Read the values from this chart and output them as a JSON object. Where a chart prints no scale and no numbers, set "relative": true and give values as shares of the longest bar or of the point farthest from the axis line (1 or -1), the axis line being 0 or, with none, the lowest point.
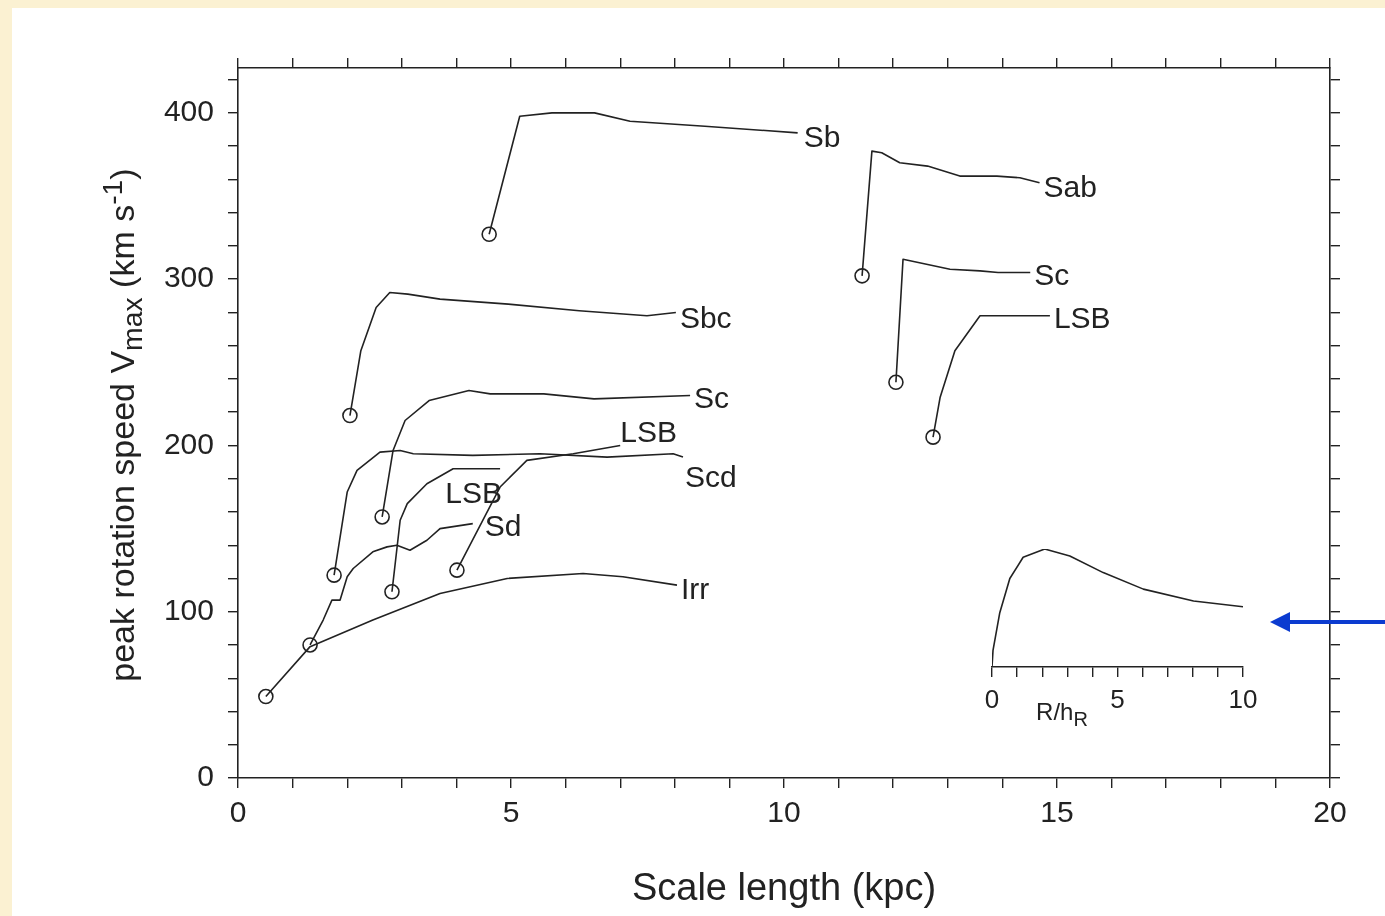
{
  "chart_data": [
    {
      "type": "line",
      "xlabel": "Scale length (kpc)",
      "ylabel": "peak rotation speed V$_{max}$ (km s$^{-1}$)",
      "xlim": [
        0,
        20
      ],
      "ylim": [
        0,
        427
      ],
      "xticks": [
        0,
        {
          "value": 1,
          "label": null
        },
        {
          "value": 2,
          "label": null
        },
        {
          "value": 3,
          "label": null
        },
        {
          "value": 4,
          "label": null
        },
        5,
        {
          "value": 6,
          "label": null
        },
        {
          "value": 7,
          "label": null
        },
        {
          "value": 8,
          "label": null
        },
        {
          "value": 9,
          "label": null
        },
        10,
        {
          "value": 11,
          "label": null
        },
        {
          "value": 12,
          "label": null
        },
        {
          "value": 13,
          "label": null
        },
        {
          "value": 14,
          "label": null
        },
        15,
        {
          "value": 16,
          "label": null
        },
        {
          "value": 17,
          "label": null
        },
        {
          "value": 18,
          "label": null
        },
        {
          "value": 19,
          "label": null
        },
        20
      ],
      "yticks": [
        0,
        {
          "value": 20,
          "label": null
        },
        {
          "value": 40,
          "label": null
        },
        {
          "value": 60,
          "label": null
        },
        {
          "value": 80,
          "label": null
        },
        100,
        {
          "value": 120,
          "label": null
        },
        {
          "value": 140,
          "label": null
        },
        {
          "value": 160,
          "label": null
        },
        {
          "value": 180,
          "label": null
        },
        200,
        {
          "value": 220,
          "label": null
        },
        {
          "value": 240,
          "label": null
        },
        {
          "value": 260,
          "label": null
        },
        {
          "value": 280,
          "label": null
        },
        300,
        {
          "value": 320,
          "label": null
        },
        {
          "value": 340,
          "label": null
        },
        {
          "value": 360,
          "label": null
        },
        {
          "value": 380,
          "label": null
        },
        400,
        {
          "value": 420,
          "label": null
        }
      ],
      "marker": "none",
      "series": [
        {
          "name": "Sb",
          "color": "#222222",
          "x": [
            4.6,
            5.16,
            5.75,
            6.53,
            7.18,
            8.55,
            10.25
          ],
          "values": [
            327,
            398,
            400,
            400,
            395,
            392,
            388
          ]
        },
        {
          "name": "Sab",
          "color": "#222222",
          "x": [
            11.43,
            11.61,
            11.79,
            12.12,
            12.63,
            13.22,
            13.9,
            14.32,
            14.68
          ],
          "values": [
            302,
            377,
            376,
            370,
            368,
            362,
            362,
            361,
            358
          ]
        },
        {
          "name": "Sc",
          "color": "#222222",
          "x": [
            12.05,
            12.18,
            13.04,
            13.59,
            13.92,
            14.51
          ],
          "values": [
            238,
            312,
            306,
            305,
            304,
            304
          ]
        },
        {
          "name": "LSB",
          "color": "#222222",
          "x": [
            12.73,
            12.86,
            13.13,
            13.59,
            14.87
          ],
          "values": [
            205,
            229,
            257,
            278,
            278
          ]
        },
        {
          "name": "Sbc",
          "color": "#222222",
          "x": [
            2.05,
            2.25,
            2.53,
            2.78,
            3.11,
            3.7,
            4.95,
            6.25,
            7.49,
            8.02
          ],
          "values": [
            218,
            257,
            283,
            292,
            291,
            288,
            285,
            281,
            278,
            280
          ]
        },
        {
          "name": "Sc",
          "color": "#222222",
          "x": [
            2.64,
            2.84,
            3.06,
            3.5,
            4.23,
            4.62,
            5.6,
            6.52,
            8.28
          ],
          "values": [
            157,
            197,
            215,
            227,
            233,
            231,
            231,
            228,
            230
          ]
        },
        {
          "name": "Scd",
          "color": "#222222",
          "x": [
            1.76,
            2.0,
            2.18,
            2.6,
            2.97,
            3.21,
            4.3,
            5.53,
            6.76,
            7.97,
            8.15
          ],
          "values": [
            122,
            172,
            185,
            196,
            197,
            195,
            194,
            195,
            193,
            195,
            193
          ]
        },
        {
          "name": "LSB",
          "color": "#222222",
          "x": [
            4.01,
            4.8,
            5.29,
            6.14,
            7.0
          ],
          "values": [
            125,
            175,
            191,
            195,
            200
          ]
        },
        {
          "name": "LSB",
          "color": "#222222",
          "x": [
            2.82,
            2.97,
            3.1,
            3.46,
            3.94,
            4.8
          ],
          "values": [
            112,
            155,
            165,
            177,
            186,
            186
          ]
        },
        {
          "name": "Sd",
          "color": "#222222",
          "x": [
            1.32,
            1.56,
            1.72,
            1.87,
            2.0,
            2.11,
            2.47,
            2.73,
            2.91,
            3.15,
            3.46,
            3.7,
            4.3
          ],
          "values": [
            80,
            95,
            107,
            107,
            121,
            126,
            136,
            139,
            140,
            137,
            143,
            150,
            153
          ]
        },
        {
          "name": "Irr",
          "color": "#222222",
          "x": [
            0.51,
            1.32,
            2.47,
            3.7,
            4.93,
            6.32,
            7.05,
            8.04
          ],
          "values": [
            49,
            79,
            95,
            111,
            120,
            123,
            121,
            116
          ]
        },
        {
          "type": "scatter",
          "marker": "circle",
          "color": "#222222",
          "x": [
            4.6,
            11.43,
            12.05,
            12.73,
            2.05,
            2.64,
            1.76,
            4.01,
            2.82,
            1.32,
            0.51
          ],
          "values": [
            327,
            302,
            238,
            205,
            218,
            157,
            122,
            125,
            112,
            80,
            49
          ]
        }
      ]
    },
    {
      "type": "line",
      "relative": true,
      "xlabel": "R/h$_{R}$",
      "xlim": [
        0,
        10
      ],
      "xticks": [
        0,
        {
          "value": 1,
          "label": null
        },
        {
          "value": 2,
          "label": null
        },
        {
          "value": 3,
          "label": null
        },
        {
          "value": 4,
          "label": null
        },
        5,
        {
          "value": 6,
          "label": null
        },
        {
          "value": 7,
          "label": null
        },
        {
          "value": 8,
          "label": null
        },
        {
          "value": 9,
          "label": null
        },
        10
      ],
      "tick_labels": "x",
      "series": [
        {
          "color": "#222222",
          "x": [
            0,
            0.04,
            0.31,
            0.71,
            1.24,
            2.1,
            3.1,
            4.43,
            6.03,
            8.03,
            10
          ],
          "values": [
            0,
            0.14,
            0.46,
            0.75,
            0.93,
            1,
            0.94,
            0.8,
            0.66,
            0.56,
            0.51
          ]
        }
      ]
    }
  ]
}
